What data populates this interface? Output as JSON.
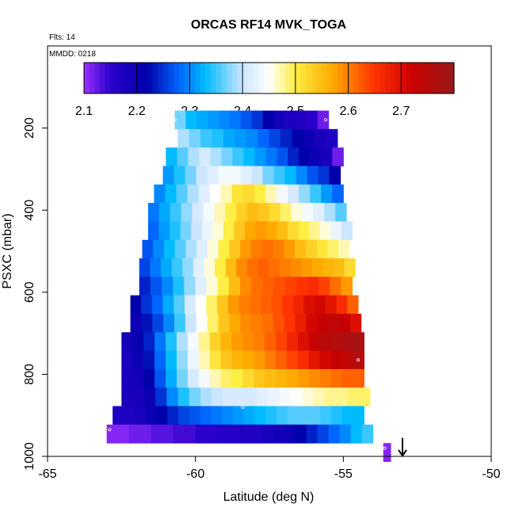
{
  "chart_data": {
    "type": "heatmap",
    "title": "ORCAS RF14 MVK_TOGA",
    "flights_note": "Flts: 14",
    "date_note": "MMDD: 0218",
    "xlabel": "Latitude (deg N)",
    "ylabel": "PSXC (mbar)",
    "xlim": [
      -65,
      -50
    ],
    "ylim": [
      1000,
      0
    ],
    "x_ticks": [
      -65,
      -60,
      -55,
      -50
    ],
    "x_tick_labels": [
      "-65",
      "-60",
      "-55",
      "-50"
    ],
    "y_ticks": [
      200,
      400,
      600,
      800,
      1000
    ],
    "y_tick_labels": [
      "200",
      "400",
      "600",
      "800",
      "1000"
    ],
    "colorbar": {
      "min": 2.1,
      "max": 2.8,
      "ticks": [
        2.1,
        2.2,
        2.3,
        2.4,
        2.5,
        2.6,
        2.7
      ],
      "tick_labels": [
        "2.1",
        "2.2",
        "2.3",
        "2.4",
        "2.5",
        "2.6",
        "2.7"
      ],
      "stops": [
        {
          "v": 2.1,
          "color": "#9b30ff"
        },
        {
          "v": 2.15,
          "color": "#2a00cc"
        },
        {
          "v": 2.22,
          "color": "#0000aa"
        },
        {
          "v": 2.28,
          "color": "#0066ff"
        },
        {
          "v": 2.33,
          "color": "#00bbff"
        },
        {
          "v": 2.4,
          "color": "#cce6ff"
        },
        {
          "v": 2.45,
          "color": "#ffffff"
        },
        {
          "v": 2.5,
          "color": "#ffee44"
        },
        {
          "v": 2.57,
          "color": "#ffaa00"
        },
        {
          "v": 2.65,
          "color": "#ff3300"
        },
        {
          "v": 2.72,
          "color": "#cc0000"
        },
        {
          "v": 2.8,
          "color": "#991a1a"
        }
      ]
    },
    "layers": [
      {
        "p": 180,
        "lat_start": -60.7,
        "lat_end": -55.5,
        "values": [
          2.37,
          2.33,
          2.32,
          2.31,
          2.3,
          2.29,
          2.27,
          2.25,
          2.22,
          2.19,
          2.17,
          2.16,
          2.15,
          2.12
        ]
      },
      {
        "p": 225,
        "lat_start": -60.6,
        "lat_end": -55.2,
        "values": [
          2.39,
          2.37,
          2.35,
          2.34,
          2.32,
          2.31,
          2.3,
          2.28,
          2.26,
          2.24,
          2.22,
          2.2,
          2.18,
          2.17
        ]
      },
      {
        "p": 270,
        "lat_start": -61.0,
        "lat_end": -55.0,
        "values": [
          2.33,
          2.36,
          2.39,
          2.41,
          2.39,
          2.37,
          2.35,
          2.33,
          2.31,
          2.29,
          2.27,
          2.24,
          2.22,
          2.2,
          2.18,
          2.12
        ]
      },
      {
        "p": 315,
        "lat_start": -61.1,
        "lat_end": -55.1,
        "values": [
          2.31,
          2.34,
          2.37,
          2.4,
          2.42,
          2.44,
          2.44,
          2.42,
          2.4,
          2.37,
          2.35,
          2.33,
          2.3,
          2.27,
          2.25,
          2.22
        ]
      },
      {
        "p": 360,
        "lat_start": -61.4,
        "lat_end": -55.0,
        "values": [
          2.3,
          2.33,
          2.36,
          2.39,
          2.42,
          2.45,
          2.47,
          2.51,
          2.52,
          2.5,
          2.47,
          2.44,
          2.41,
          2.38,
          2.35,
          2.31,
          2.28
        ]
      },
      {
        "p": 405,
        "lat_start": -61.6,
        "lat_end": -54.9,
        "values": [
          2.29,
          2.32,
          2.35,
          2.38,
          2.41,
          2.44,
          2.47,
          2.5,
          2.53,
          2.55,
          2.54,
          2.52,
          2.49,
          2.46,
          2.44,
          2.42,
          2.39,
          2.36
        ]
      },
      {
        "p": 450,
        "lat_start": -61.6,
        "lat_end": -54.7,
        "values": [
          2.28,
          2.31,
          2.34,
          2.37,
          2.4,
          2.43,
          2.46,
          2.5,
          2.54,
          2.57,
          2.58,
          2.57,
          2.55,
          2.52,
          2.5,
          2.48,
          2.46,
          2.43,
          2.4
        ]
      },
      {
        "p": 495,
        "lat_start": -61.8,
        "lat_end": -54.8,
        "values": [
          2.27,
          2.3,
          2.33,
          2.36,
          2.39,
          2.42,
          2.46,
          2.5,
          2.54,
          2.58,
          2.6,
          2.61,
          2.6,
          2.58,
          2.55,
          2.53,
          2.51,
          2.49,
          2.47
        ]
      },
      {
        "p": 540,
        "lat_start": -61.9,
        "lat_end": -54.6,
        "values": [
          2.26,
          2.29,
          2.32,
          2.35,
          2.38,
          2.42,
          2.46,
          2.5,
          2.55,
          2.59,
          2.61,
          2.62,
          2.61,
          2.6,
          2.59,
          2.58,
          2.57,
          2.56,
          2.55,
          2.52
        ]
      },
      {
        "p": 585,
        "lat_start": -61.9,
        "lat_end": -54.7,
        "values": [
          2.24,
          2.27,
          2.3,
          2.34,
          2.38,
          2.42,
          2.46,
          2.5,
          2.55,
          2.59,
          2.61,
          2.62,
          2.63,
          2.64,
          2.65,
          2.66,
          2.64,
          2.61,
          2.58
        ]
      },
      {
        "p": 630,
        "lat_start": -62.2,
        "lat_end": -54.5,
        "values": [
          2.22,
          2.25,
          2.28,
          2.32,
          2.36,
          2.41,
          2.45,
          2.49,
          2.54,
          2.58,
          2.6,
          2.61,
          2.62,
          2.63,
          2.65,
          2.67,
          2.7,
          2.71,
          2.69,
          2.66,
          2.62
        ]
      },
      {
        "p": 675,
        "lat_start": -62.2,
        "lat_end": -54.4,
        "values": [
          2.2,
          2.23,
          2.26,
          2.3,
          2.35,
          2.4,
          2.45,
          2.49,
          2.54,
          2.57,
          2.59,
          2.6,
          2.61,
          2.63,
          2.65,
          2.68,
          2.71,
          2.73,
          2.74,
          2.73,
          2.7
        ]
      },
      {
        "p": 720,
        "lat_start": -62.5,
        "lat_end": -54.3,
        "values": [
          2.19,
          2.21,
          2.24,
          2.29,
          2.34,
          2.39,
          2.44,
          2.48,
          2.53,
          2.56,
          2.58,
          2.59,
          2.6,
          2.62,
          2.64,
          2.67,
          2.7,
          2.73,
          2.75,
          2.76,
          2.77,
          2.78
        ]
      },
      {
        "p": 765,
        "lat_start": -62.5,
        "lat_end": -54.3,
        "values": [
          2.18,
          2.2,
          2.23,
          2.28,
          2.33,
          2.38,
          2.43,
          2.47,
          2.51,
          2.54,
          2.56,
          2.57,
          2.58,
          2.6,
          2.62,
          2.64,
          2.66,
          2.69,
          2.71,
          2.73,
          2.74,
          2.76
        ]
      },
      {
        "p": 810,
        "lat_start": -62.5,
        "lat_end": -54.3,
        "values": [
          2.18,
          2.19,
          2.22,
          2.27,
          2.32,
          2.37,
          2.41,
          2.44,
          2.47,
          2.49,
          2.5,
          2.52,
          2.54,
          2.55,
          2.56,
          2.57,
          2.58,
          2.59,
          2.6,
          2.61,
          2.62,
          2.62
        ]
      },
      {
        "p": 855,
        "lat_start": -62.5,
        "lat_end": -54.1,
        "values": [
          2.18,
          2.18,
          2.2,
          2.25,
          2.3,
          2.34,
          2.37,
          2.39,
          2.4,
          2.41,
          2.41,
          2.41,
          2.42,
          2.43,
          2.44,
          2.45,
          2.46,
          2.47,
          2.48,
          2.48,
          2.49,
          2.49
        ]
      },
      {
        "p": 900,
        "lat_start": -62.8,
        "lat_end": -54.3,
        "values": [
          2.17,
          2.17,
          2.18,
          2.2,
          2.22,
          2.24,
          2.26,
          2.27,
          2.28,
          2.29,
          2.3,
          2.31,
          2.32,
          2.33,
          2.34,
          2.35,
          2.36,
          2.36,
          2.36,
          2.35,
          2.34,
          2.33,
          2.33
        ]
      },
      {
        "p": 945,
        "lat_start": -63.0,
        "lat_end": -54.0,
        "values": [
          2.11,
          2.11,
          2.12,
          2.12,
          2.13,
          2.13,
          2.14,
          2.14,
          2.15,
          2.15,
          2.16,
          2.16,
          2.17,
          2.17,
          2.18,
          2.19,
          2.2,
          2.22,
          2.24,
          2.26,
          2.28,
          2.3,
          2.33,
          2.35
        ]
      },
      {
        "p": 990,
        "lat_start": -53.65,
        "lat_end": -53.4,
        "values": [
          2.11
        ]
      }
    ],
    "markers": [
      {
        "lat": -60.7,
        "p": 180
      },
      {
        "lat": -55.6,
        "p": 180
      },
      {
        "lat": -54.5,
        "p": 765
      },
      {
        "lat": -58.4,
        "p": 880
      },
      {
        "lat": -62.9,
        "p": 935
      },
      {
        "lat": -53.6,
        "p": 980
      }
    ],
    "arrow": {
      "lat": -53.0,
      "p_from": 955,
      "p_to": 1000
    }
  }
}
